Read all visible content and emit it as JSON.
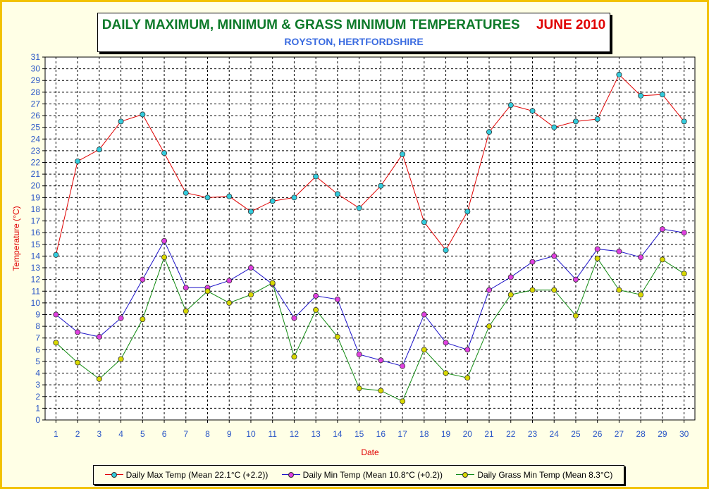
{
  "title": "DAILY MAXIMUM, MINIMUM & GRASS MINIMUM TEMPERATURES",
  "period": "JUNE 2010",
  "subtitle": "ROYSTON, HERTFORDSHIRE",
  "colors": {
    "title": "#0E7A2A",
    "period": "#E00000",
    "subtitle": "#3A6BE0",
    "axis_label": "#E00000",
    "tick_label": "#2A56C6",
    "frame": "#F2C200",
    "background": "#FFFFE6"
  },
  "chart_data": {
    "type": "line",
    "xlabel": "Date",
    "ylabel": "Temperature (°C)",
    "x": [
      1,
      2,
      3,
      4,
      5,
      6,
      7,
      8,
      9,
      10,
      11,
      12,
      13,
      14,
      15,
      16,
      17,
      18,
      19,
      20,
      21,
      22,
      23,
      24,
      25,
      26,
      27,
      28,
      29,
      30
    ],
    "ylim": [
      0,
      31
    ],
    "y_ticks": [
      0,
      1,
      2,
      3,
      4,
      5,
      6,
      7,
      8,
      9,
      10,
      11,
      12,
      13,
      14,
      15,
      16,
      17,
      18,
      19,
      20,
      21,
      22,
      23,
      24,
      25,
      26,
      27,
      28,
      29,
      30,
      31
    ],
    "grid": true,
    "legend_position": "bottom",
    "series": [
      {
        "name": "Daily Max Temp (Mean 22.1°C (+2.2))",
        "line_color": "#E00000",
        "marker_color": "#33CCDD",
        "values": [
          14.1,
          22.1,
          23.1,
          25.5,
          26.1,
          22.8,
          19.4,
          19.0,
          19.1,
          17.8,
          18.7,
          19.0,
          20.8,
          19.3,
          18.1,
          20.0,
          22.7,
          16.9,
          14.5,
          17.8,
          24.6,
          26.9,
          26.4,
          25.0,
          25.5,
          25.7,
          29.5,
          27.7,
          27.8,
          25.5
        ]
      },
      {
        "name": "Daily Min Temp (Mean 10.8°C (+0.2))",
        "line_color": "#1A10C8",
        "marker_color": "#E040E0",
        "values": [
          9.0,
          7.5,
          7.1,
          8.7,
          12.0,
          15.3,
          11.3,
          11.3,
          11.9,
          13.0,
          11.6,
          8.7,
          10.6,
          10.3,
          5.6,
          5.1,
          4.6,
          9.0,
          6.6,
          6.0,
          11.1,
          12.2,
          13.5,
          14.0,
          12.0,
          14.6,
          14.4,
          13.9,
          16.3,
          16.0
        ]
      },
      {
        "name": "Daily Grass Min Temp (Mean 8.3°C)",
        "line_color": "#108A10",
        "marker_color": "#D8D800",
        "values": [
          6.6,
          4.9,
          3.5,
          5.2,
          8.6,
          13.9,
          9.3,
          11.0,
          10.0,
          10.7,
          11.7,
          5.4,
          9.4,
          7.1,
          2.7,
          2.5,
          1.6,
          6.0,
          4.0,
          3.6,
          8.0,
          10.7,
          11.1,
          11.1,
          8.9,
          13.8,
          11.1,
          10.7,
          13.7,
          12.5
        ]
      }
    ]
  }
}
